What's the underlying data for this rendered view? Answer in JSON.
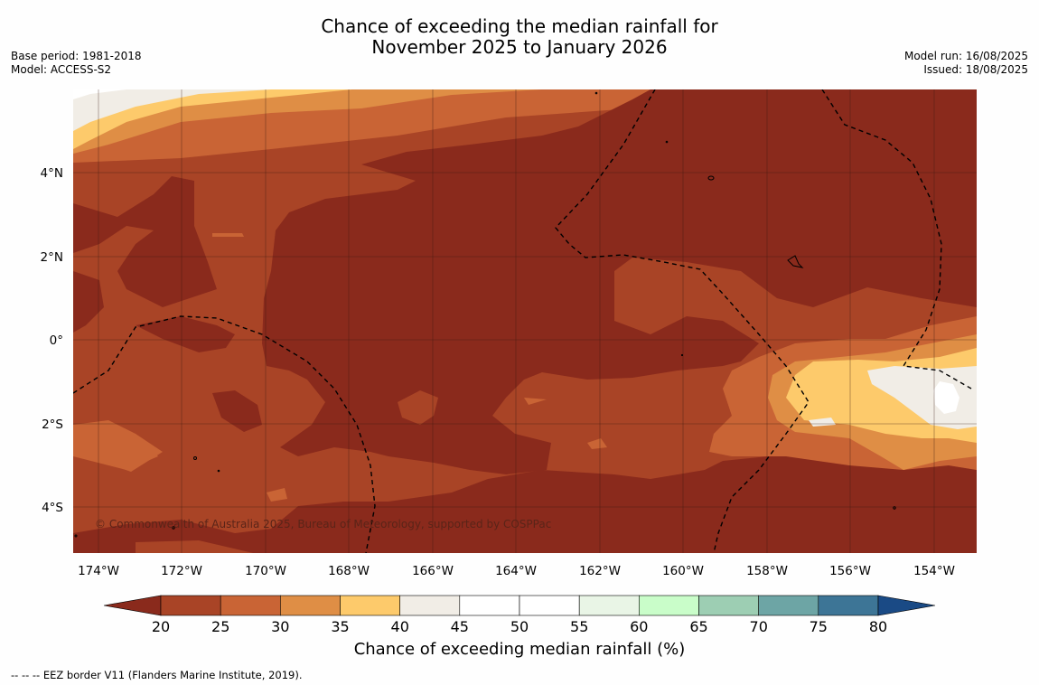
{
  "title_line1": "Chance of exceeding the median rainfall for",
  "title_line2": "November 2025 to January 2026",
  "base_period": "Base period: 1981-2018",
  "model": "Model: ACCESS-S2",
  "model_run": "Model run: 16/08/2025",
  "issued": "Issued: 18/08/2025",
  "copyright": "© Commonwealth of Australia 2025, Bureau of Meteorology, supported by COSPPac",
  "lon_labels": [
    "174°W",
    "172°W",
    "170°W",
    "168°W",
    "166°W",
    "164°W",
    "162°W",
    "160°W",
    "158°W",
    "156°W",
    "154°W"
  ],
  "lat_labels": [
    "4°N",
    "2°N",
    "0°",
    "2°S",
    "4°S"
  ],
  "colorbar": {
    "ticks": [
      "20",
      "25",
      "30",
      "35",
      "40",
      "45",
      "50",
      "55",
      "60",
      "65",
      "70",
      "75",
      "80"
    ],
    "colors": {
      "below_20": "#8a2a1c",
      "20_25": "#a94426",
      "25_30": "#c96435",
      "30_35": "#df8e45",
      "35_40": "#fdca6b",
      "40_45": "#f1ede6",
      "45_50": "#ffffff",
      "50_55": "#ffffff",
      "55_60": "#e9f5e6",
      "60_65": "#c9fdc9",
      "65_70": "#9dceb3",
      "70_75": "#6da5a5",
      "75_80": "#3d7596",
      "above_80": "#1a4a85"
    },
    "label": "Chance of exceeding median rainfall (%)"
  },
  "footnote": "-- -- -- EEZ border V11 (Flanders Marine Institute, 2019)."
}
